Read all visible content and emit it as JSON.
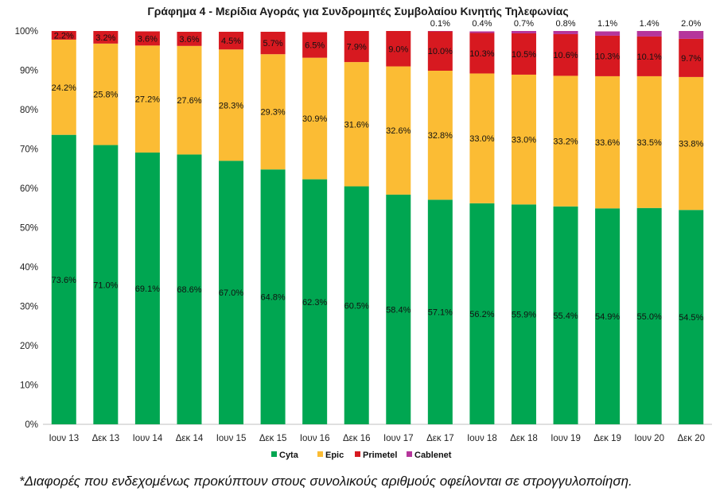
{
  "footnote": "*Διαφορές που ενδεχομένως προκύπτουν στους συνολικούς αριθμούς οφείλονται σε στρογγυλοποίηση.",
  "chart_data": {
    "type": "bar",
    "stacked": true,
    "title": "Γράφημα 4 - Μερίδια Αγοράς για Συνδρομητές Συμβολαίου Κινητής Τηλεφωνίας",
    "xlabel": "",
    "ylabel": "",
    "ylim": [
      0,
      100
    ],
    "y_ticks": [
      "0%",
      "10%",
      "20%",
      "30%",
      "40%",
      "50%",
      "60%",
      "70%",
      "80%",
      "90%",
      "100%"
    ],
    "legend_position": "bottom",
    "categories": [
      "Ιουν 13",
      "Δεκ 13",
      "Ιουν 14",
      "Δεκ 14",
      "Ιουν 15",
      "Δεκ 15",
      "Ιουν 16",
      "Δεκ 16",
      "Ιουν 17",
      "Δεκ 17",
      "Ιουν 18",
      "Δεκ 18",
      "Ιουν 19",
      "Δεκ 19",
      "Ιουν 20",
      "Δεκ 20"
    ],
    "series": [
      {
        "name": "Cyta",
        "color": "#00a651",
        "values": [
          73.6,
          71.0,
          69.1,
          68.6,
          67.0,
          64.8,
          62.3,
          60.5,
          58.4,
          57.1,
          56.2,
          55.9,
          55.4,
          54.9,
          55.0,
          54.5
        ],
        "labels": [
          "73.6%",
          "71.0%",
          "69.1%",
          "68.6%",
          "67.0%",
          "64.8%",
          "62.3%",
          "60.5%",
          "58.4%",
          "57.1%",
          "56.2%",
          "55.9%",
          "55.4%",
          "54.9%",
          "55.0%",
          "54.5%"
        ]
      },
      {
        "name": "Epic",
        "color": "#fbbc34",
        "values": [
          24.2,
          25.8,
          27.2,
          27.6,
          28.3,
          29.3,
          30.9,
          31.6,
          32.6,
          32.8,
          33.0,
          33.0,
          33.2,
          33.6,
          33.5,
          33.8
        ],
        "labels": [
          "24.2%",
          "25.8%",
          "27.2%",
          "27.6%",
          "28.3%",
          "29.3%",
          "30.9%",
          "31.6%",
          "32.6%",
          "32.8%",
          "33.0%",
          "33.0%",
          "33.2%",
          "33.6%",
          "33.5%",
          "33.8%"
        ]
      },
      {
        "name": "Primetel",
        "color": "#d71920",
        "values": [
          2.2,
          3.2,
          3.6,
          3.6,
          4.5,
          5.7,
          6.5,
          7.9,
          9.0,
          10.0,
          10.3,
          10.5,
          10.6,
          10.3,
          10.1,
          9.7
        ],
        "labels": [
          "2.2%",
          "3.2%",
          "3.6%",
          "3.6%",
          "4.5%",
          "5.7%",
          "6.5%",
          "7.9%",
          "9.0%",
          "10.0%",
          "10.3%",
          "10.5%",
          "10.6%",
          "10.3%",
          "10.1%",
          "9.7%"
        ]
      },
      {
        "name": "Cablenet",
        "color": "#b5359b",
        "values": [
          0,
          0,
          0,
          0,
          0,
          0,
          0,
          0,
          0,
          0.1,
          0.4,
          0.7,
          0.8,
          1.1,
          1.4,
          2.0
        ],
        "labels": [
          "",
          "",
          "",
          "",
          "",
          "",
          "",
          "",
          "",
          "0.1%",
          "0.4%",
          "0.7%",
          "0.8%",
          "1.1%",
          "1.4%",
          "2.0%"
        ]
      }
    ]
  }
}
